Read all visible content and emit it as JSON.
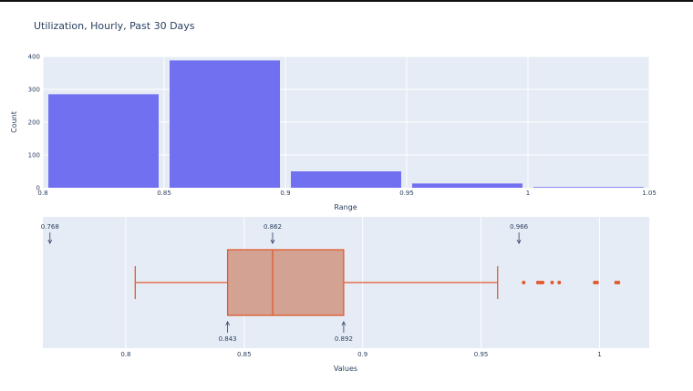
{
  "title": "Utilization, Hourly, Past 30 Days",
  "chart_data": [
    {
      "type": "bar",
      "name": "histogram",
      "xlabel": "Range",
      "ylabel": "Count",
      "xlim": [
        0.8,
        1.05
      ],
      "ylim": [
        0,
        400
      ],
      "xticks": [
        {
          "value": 0.8,
          "label": "0.8"
        },
        {
          "value": 0.85,
          "label": "0.85"
        },
        {
          "value": 0.9,
          "label": "0.9"
        },
        {
          "value": 0.95,
          "label": "0.95"
        },
        {
          "value": 1.0,
          "label": "1"
        },
        {
          "value": 1.05,
          "label": "1.05"
        }
      ],
      "yticks": [
        {
          "value": 0,
          "label": "0"
        },
        {
          "value": 100,
          "label": "100"
        },
        {
          "value": 200,
          "label": "200"
        },
        {
          "value": 300,
          "label": "300"
        },
        {
          "value": 400,
          "label": "400"
        }
      ],
      "bins": [
        {
          "x0": 0.8,
          "x1": 0.85,
          "count": 285
        },
        {
          "x0": 0.85,
          "x1": 0.9,
          "count": 388
        },
        {
          "x0": 0.9,
          "x1": 0.95,
          "count": 50
        },
        {
          "x0": 0.95,
          "x1": 1.0,
          "count": 13
        },
        {
          "x0": 1.0,
          "x1": 1.05,
          "count": 2
        }
      ],
      "grid": true,
      "bar_color": "#7070f0"
    },
    {
      "type": "box",
      "name": "boxplot",
      "xlabel": "Values",
      "xlim": [
        0.765,
        1.021
      ],
      "xticks": [
        {
          "value": 0.8,
          "label": "0.8"
        },
        {
          "value": 0.85,
          "label": "0.85"
        },
        {
          "value": 0.9,
          "label": "0.9"
        },
        {
          "value": 0.95,
          "label": "0.95"
        },
        {
          "value": 1.0,
          "label": "1"
        }
      ],
      "whisker_low": 0.804,
      "q1": 0.843,
      "median": 0.862,
      "q3": 0.892,
      "whisker_high": 0.957,
      "outliers": [
        0.968,
        0.974,
        0.975,
        0.976,
        0.98,
        0.983,
        0.998,
        0.999,
        1.007,
        1.008
      ],
      "annotations": [
        {
          "value": 0.768,
          "label": "0.768",
          "position": "top"
        },
        {
          "value": 0.862,
          "label": "0.862",
          "position": "top"
        },
        {
          "value": 0.966,
          "label": "0.966",
          "position": "top"
        },
        {
          "value": 0.843,
          "label": "0.843",
          "position": "bottom"
        },
        {
          "value": 0.892,
          "label": "0.892",
          "position": "bottom"
        }
      ],
      "grid": true,
      "box_color": "#d4a293",
      "line_color": "#e05a2f"
    }
  ]
}
